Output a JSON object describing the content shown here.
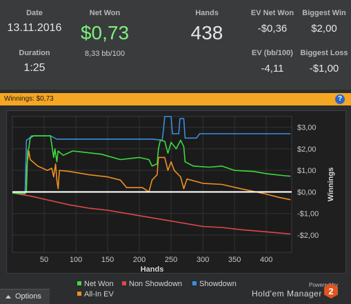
{
  "stats": {
    "date": {
      "label": "Date",
      "value": "13.11.2016"
    },
    "duration": {
      "label": "Duration",
      "value": "1:25"
    },
    "net_won": {
      "label": "Net Won",
      "value": "$0,73",
      "sub": "8,33 bb/100"
    },
    "hands": {
      "label": "Hands",
      "value": "438"
    },
    "ev_net_won": {
      "label": "EV Net Won",
      "value": "-$0,36"
    },
    "ev_bb100": {
      "label": "EV (bb/100)",
      "value": "-4,11"
    },
    "biggest_win": {
      "label": "Biggest Win",
      "value": "$2,00"
    },
    "biggest_loss": {
      "label": "Biggest Loss",
      "value": "-$1,00"
    }
  },
  "panel_bar": {
    "title": "Winnings: $0,73",
    "help_icon": "?"
  },
  "colors": {
    "accent": "#f5a623",
    "net_won": "#3ddc3d",
    "non_showdown": "#e04848",
    "showdown": "#3a8fe0",
    "all_in_ev": "#f09020"
  },
  "chart_data": {
    "type": "line",
    "xlabel": "Hands",
    "ylabel": "Winnings",
    "xlim": [
      0,
      440
    ],
    "ylim": [
      -2.8,
      3.5
    ],
    "x_ticks": [
      50,
      100,
      150,
      200,
      250,
      300,
      350,
      400
    ],
    "x_tick_labels": [
      "50",
      "100",
      "150",
      "200",
      "250",
      "300",
      "350",
      "400"
    ],
    "y_ticks": [
      3,
      2,
      1,
      0,
      -1,
      -2
    ],
    "y_tick_labels": [
      "$3,00",
      "$2,00",
      "$1,00",
      "$0,00",
      "-$1,00",
      "-$2,00"
    ],
    "grid": true,
    "zero_line": true,
    "legend_position": "bottom",
    "series": [
      {
        "name": "Net Won",
        "color": "#3ddc3d",
        "points": [
          [
            0,
            -0.05
          ],
          [
            20,
            -0.08
          ],
          [
            22,
            0
          ],
          [
            24,
            1.9
          ],
          [
            26,
            2.05
          ],
          [
            28,
            2.5
          ],
          [
            33,
            2.6
          ],
          [
            60,
            2.6
          ],
          [
            65,
            1.6
          ],
          [
            67,
            2.0
          ],
          [
            70,
            1.4
          ],
          [
            72,
            1.9
          ],
          [
            80,
            1.7
          ],
          [
            95,
            1.9
          ],
          [
            110,
            1.85
          ],
          [
            140,
            1.75
          ],
          [
            170,
            1.5
          ],
          [
            200,
            1.6
          ],
          [
            215,
            1.5
          ],
          [
            220,
            1.2
          ],
          [
            228,
            1.3
          ],
          [
            230,
            2.0
          ],
          [
            233,
            2.4
          ],
          [
            240,
            2.35
          ],
          [
            245,
            1.8
          ],
          [
            250,
            2.3
          ],
          [
            258,
            2.0
          ],
          [
            265,
            2.4
          ],
          [
            270,
            2.1
          ],
          [
            272,
            1.4
          ],
          [
            285,
            1.2
          ],
          [
            310,
            1.15
          ],
          [
            330,
            1.2
          ],
          [
            350,
            1.0
          ],
          [
            380,
            0.95
          ],
          [
            400,
            0.85
          ],
          [
            430,
            0.75
          ],
          [
            438,
            0.73
          ]
        ]
      },
      {
        "name": "Non Showdown",
        "color": "#e04848",
        "points": [
          [
            0,
            -0.05
          ],
          [
            30,
            -0.2
          ],
          [
            60,
            -0.4
          ],
          [
            90,
            -0.6
          ],
          [
            120,
            -0.75
          ],
          [
            150,
            -0.85
          ],
          [
            180,
            -1.0
          ],
          [
            210,
            -1.15
          ],
          [
            240,
            -1.3
          ],
          [
            270,
            -1.45
          ],
          [
            300,
            -1.6
          ],
          [
            330,
            -1.65
          ],
          [
            360,
            -1.75
          ],
          [
            400,
            -1.85
          ],
          [
            438,
            -1.95
          ]
        ]
      },
      {
        "name": "Showdown",
        "color": "#3a8fe0",
        "points": [
          [
            0,
            -0.05
          ],
          [
            20,
            -0.05
          ],
          [
            22,
            2.4
          ],
          [
            27,
            2.5
          ],
          [
            30,
            2.6
          ],
          [
            60,
            2.6
          ],
          [
            70,
            2.45
          ],
          [
            130,
            2.45
          ],
          [
            220,
            2.45
          ],
          [
            236,
            2.4
          ],
          [
            238,
            2.9
          ],
          [
            240,
            3.5
          ],
          [
            250,
            3.5
          ],
          [
            252,
            2.7
          ],
          [
            262,
            2.7
          ],
          [
            264,
            3.4
          ],
          [
            270,
            3.4
          ],
          [
            272,
            2.5
          ],
          [
            290,
            2.5
          ],
          [
            295,
            2.7
          ],
          [
            340,
            2.7
          ],
          [
            400,
            2.7
          ],
          [
            438,
            2.7
          ]
        ]
      },
      {
        "name": "All-In EV",
        "color": "#f09020",
        "points": [
          [
            0,
            -0.05
          ],
          [
            20,
            -0.08
          ],
          [
            22,
            1.1
          ],
          [
            26,
            1.9
          ],
          [
            28,
            1.5
          ],
          [
            40,
            1.2
          ],
          [
            55,
            1.0
          ],
          [
            62,
            1.1
          ],
          [
            65,
            0.7
          ],
          [
            68,
            1.3
          ],
          [
            70,
            0.55
          ],
          [
            72,
            0.15
          ],
          [
            74,
            1.0
          ],
          [
            90,
            0.95
          ],
          [
            120,
            0.8
          ],
          [
            150,
            0.7
          ],
          [
            170,
            0.55
          ],
          [
            180,
            0.2
          ],
          [
            205,
            0.2
          ],
          [
            215,
            0.0
          ],
          [
            220,
            0.55
          ],
          [
            228,
            0.8
          ],
          [
            230,
            1.6
          ],
          [
            240,
            1.6
          ],
          [
            245,
            1.0
          ],
          [
            250,
            1.4
          ],
          [
            255,
            1.0
          ],
          [
            265,
            0.7
          ],
          [
            270,
            0.15
          ],
          [
            275,
            0.6
          ],
          [
            300,
            0.4
          ],
          [
            330,
            0.35
          ],
          [
            360,
            0.15
          ],
          [
            400,
            -0.1
          ],
          [
            420,
            -0.25
          ],
          [
            438,
            -0.36
          ]
        ]
      }
    ]
  },
  "legend_items": [
    {
      "label": "Net Won",
      "color": "#3ddc3d"
    },
    {
      "label": "Non Showdown",
      "color": "#e04848"
    },
    {
      "label": "Showdown",
      "color": "#3a8fe0"
    },
    {
      "label": "All-In EV",
      "color": "#f09020"
    }
  ],
  "footer": {
    "options_label": "Options",
    "powered_by": "Powered by",
    "brand": "Hold'em Manager",
    "brand_badge": "2"
  }
}
